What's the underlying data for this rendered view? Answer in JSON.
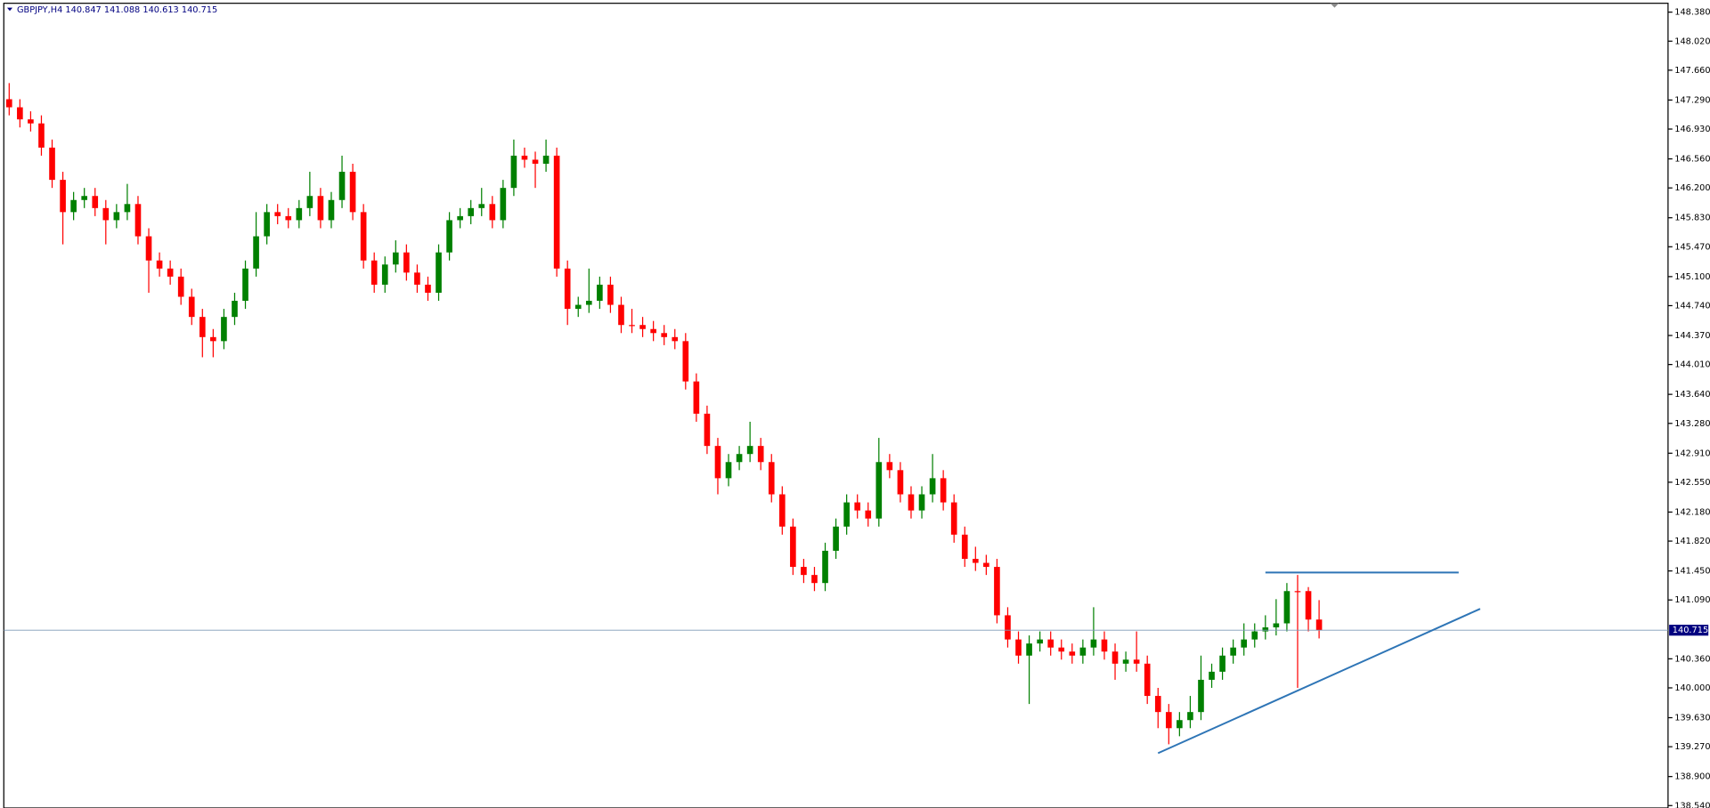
{
  "chart_data": {
    "type": "candlestick",
    "title": "GBPJPY,H4  140.847 141.088 140.613 140.715",
    "up_color": "#008000",
    "down_color": "#ff0000",
    "open": [
      147.3,
      147.2,
      147.05,
      147.0,
      146.7,
      146.3,
      145.9,
      146.05,
      146.1,
      145.95,
      145.8,
      145.9,
      146.0,
      145.6,
      145.3,
      145.2,
      145.1,
      144.85,
      144.6,
      144.35,
      144.3,
      144.6,
      144.8,
      145.2,
      145.6,
      145.9,
      145.85,
      145.8,
      145.95,
      146.1,
      145.8,
      146.05,
      146.4,
      145.9,
      145.3,
      145.0,
      145.25,
      145.4,
      145.15,
      145.0,
      144.9,
      145.4,
      145.8,
      145.85,
      145.95,
      146.0,
      145.8,
      146.2,
      146.6,
      146.55,
      146.5,
      146.6,
      145.2,
      144.7,
      144.75,
      144.8,
      145.0,
      144.75,
      144.5,
      144.5,
      144.45,
      144.4,
      144.35,
      144.3,
      143.8,
      143.4,
      143.0,
      142.6,
      142.8,
      142.9,
      143.0,
      142.8,
      142.4,
      142.0,
      141.5,
      141.4,
      141.3,
      141.7,
      142.0,
      142.3,
      142.2,
      142.1,
      142.8,
      142.7,
      142.4,
      142.2,
      142.4,
      142.6,
      142.3,
      141.9,
      141.6,
      141.55,
      141.5,
      140.9,
      140.6,
      140.4,
      140.55,
      140.6,
      140.5,
      140.45,
      140.4,
      140.5,
      140.6,
      140.45,
      140.3,
      140.35,
      140.3,
      139.9,
      139.7,
      139.5,
      139.6,
      139.7,
      140.1,
      140.2,
      140.4,
      140.5,
      140.6,
      140.7,
      140.75,
      140.8,
      141.2,
      141.2,
      140.847
    ],
    "high": [
      147.5,
      147.3,
      147.15,
      147.1,
      146.8,
      146.4,
      146.15,
      146.2,
      146.2,
      146.05,
      146.0,
      146.25,
      146.1,
      145.7,
      145.4,
      145.3,
      145.2,
      144.95,
      144.7,
      144.45,
      144.7,
      144.9,
      145.3,
      145.9,
      146.0,
      146.0,
      145.95,
      146.05,
      146.4,
      146.2,
      146.15,
      146.6,
      146.5,
      146.0,
      145.4,
      145.35,
      145.55,
      145.5,
      145.25,
      145.1,
      145.5,
      145.9,
      145.95,
      146.05,
      146.2,
      146.1,
      146.3,
      146.8,
      146.7,
      146.65,
      146.8,
      146.7,
      145.3,
      144.85,
      145.2,
      145.1,
      145.1,
      144.85,
      144.7,
      144.6,
      144.55,
      144.5,
      144.45,
      144.4,
      143.9,
      143.5,
      143.1,
      142.9,
      143.0,
      143.3,
      143.1,
      142.9,
      142.5,
      142.1,
      141.6,
      141.5,
      141.8,
      142.1,
      142.4,
      142.4,
      142.3,
      143.1,
      142.9,
      142.8,
      142.5,
      142.5,
      142.9,
      142.7,
      142.4,
      142.0,
      141.75,
      141.65,
      141.6,
      141.0,
      140.7,
      140.65,
      140.7,
      140.7,
      140.6,
      140.55,
      140.6,
      141.0,
      140.7,
      140.55,
      140.45,
      140.7,
      140.4,
      140.0,
      139.8,
      139.7,
      139.9,
      140.4,
      140.3,
      140.5,
      140.6,
      140.8,
      140.8,
      140.9,
      141.1,
      141.3,
      141.4,
      141.25,
      141.088
    ],
    "low": [
      147.1,
      146.95,
      146.9,
      146.6,
      146.2,
      145.5,
      145.8,
      145.95,
      145.85,
      145.5,
      145.7,
      145.8,
      145.5,
      144.9,
      145.1,
      145.0,
      144.75,
      144.5,
      144.1,
      144.1,
      144.2,
      144.5,
      144.7,
      145.1,
      145.5,
      145.75,
      145.7,
      145.7,
      145.85,
      145.7,
      145.7,
      145.95,
      145.8,
      145.2,
      144.9,
      144.9,
      145.15,
      145.05,
      144.9,
      144.8,
      144.8,
      145.3,
      145.7,
      145.75,
      145.85,
      145.7,
      145.7,
      146.1,
      146.45,
      146.2,
      146.4,
      145.1,
      144.5,
      144.6,
      144.65,
      144.7,
      144.65,
      144.4,
      144.4,
      144.35,
      144.3,
      144.25,
      144.2,
      143.7,
      143.3,
      142.9,
      142.4,
      142.5,
      142.7,
      142.8,
      142.7,
      142.3,
      141.9,
      141.4,
      141.3,
      141.2,
      141.2,
      141.6,
      141.9,
      142.1,
      142.0,
      142.0,
      142.6,
      142.3,
      142.1,
      142.1,
      142.3,
      142.2,
      141.8,
      141.5,
      141.45,
      141.4,
      140.8,
      140.5,
      140.3,
      139.8,
      140.45,
      140.4,
      140.35,
      140.3,
      140.3,
      140.4,
      140.35,
      140.1,
      140.2,
      140.2,
      139.8,
      139.5,
      139.3,
      139.4,
      139.5,
      139.6,
      140.0,
      140.1,
      140.3,
      140.4,
      140.5,
      140.6,
      140.65,
      140.7,
      140.0,
      140.7,
      140.613
    ],
    "close": [
      147.2,
      147.05,
      147.0,
      146.7,
      146.3,
      145.9,
      146.05,
      146.1,
      145.95,
      145.8,
      145.9,
      146.0,
      145.6,
      145.3,
      145.2,
      145.1,
      144.85,
      144.6,
      144.35,
      144.3,
      144.6,
      144.8,
      145.2,
      145.6,
      145.9,
      145.85,
      145.8,
      145.95,
      146.1,
      145.8,
      146.05,
      146.4,
      145.9,
      145.3,
      145.0,
      145.25,
      145.4,
      145.15,
      145.0,
      144.9,
      145.4,
      145.8,
      145.85,
      145.95,
      146.0,
      145.8,
      146.2,
      146.6,
      146.55,
      146.5,
      146.6,
      145.2,
      144.7,
      144.75,
      144.8,
      145.0,
      144.75,
      144.5,
      144.5,
      144.45,
      144.4,
      144.35,
      144.3,
      143.8,
      143.4,
      143.0,
      142.6,
      142.8,
      142.9,
      143.0,
      142.8,
      142.4,
      142.0,
      141.5,
      141.4,
      141.3,
      141.7,
      142.0,
      142.3,
      142.2,
      142.1,
      142.8,
      142.7,
      142.4,
      142.2,
      142.4,
      142.6,
      142.3,
      141.9,
      141.6,
      141.55,
      141.5,
      140.9,
      140.6,
      140.4,
      140.55,
      140.6,
      140.5,
      140.45,
      140.4,
      140.5,
      140.6,
      140.45,
      140.3,
      140.35,
      140.3,
      139.9,
      139.7,
      139.5,
      139.6,
      139.7,
      140.1,
      140.2,
      140.4,
      140.5,
      140.6,
      140.7,
      140.75,
      140.8,
      141.2,
      141.2,
      140.847,
      140.715
    ],
    "xlim": [
      -0.5,
      154.5
    ],
    "ylim": [
      138.51,
      148.49
    ],
    "yticks": [
      {
        "value": 148.38,
        "label": "148.380"
      },
      {
        "value": 148.02,
        "label": "148.020"
      },
      {
        "value": 147.66,
        "label": "147.660"
      },
      {
        "value": 147.29,
        "label": "147.290"
      },
      {
        "value": 146.93,
        "label": "146.930"
      },
      {
        "value": 146.56,
        "label": "146.560"
      },
      {
        "value": 146.2,
        "label": "146.200"
      },
      {
        "value": 145.83,
        "label": "145.830"
      },
      {
        "value": 145.47,
        "label": "145.470"
      },
      {
        "value": 145.1,
        "label": "145.100"
      },
      {
        "value": 144.74,
        "label": "144.740"
      },
      {
        "value": 144.37,
        "label": "144.370"
      },
      {
        "value": 144.01,
        "label": "144.010"
      },
      {
        "value": 143.64,
        "label": "143.640"
      },
      {
        "value": 143.28,
        "label": "143.280"
      },
      {
        "value": 142.91,
        "label": "142.910"
      },
      {
        "value": 142.55,
        "label": "142.550"
      },
      {
        "value": 142.18,
        "label": "142.180"
      },
      {
        "value": 141.82,
        "label": "141.820"
      },
      {
        "value": 141.45,
        "label": "141.450"
      },
      {
        "value": 141.09,
        "label": "141.090"
      },
      {
        "value": 140.36,
        "label": "140.360"
      },
      {
        "value": 140.0,
        "label": "140.000"
      },
      {
        "value": 139.63,
        "label": "139.630"
      },
      {
        "value": 139.27,
        "label": "139.270"
      },
      {
        "value": 138.9,
        "label": "138.900"
      },
      {
        "value": 138.54,
        "label": "138.540"
      }
    ],
    "last_price": 140.715,
    "last_price_color": "#000080",
    "lines": [
      {
        "color": "#2e75b6",
        "x": [
          107,
          137
        ],
        "values": [
          139.19,
          140.98
        ]
      },
      {
        "color": "#2e75b6",
        "x": [
          117,
          135
        ],
        "values": [
          141.43,
          141.43
        ]
      }
    ]
  }
}
